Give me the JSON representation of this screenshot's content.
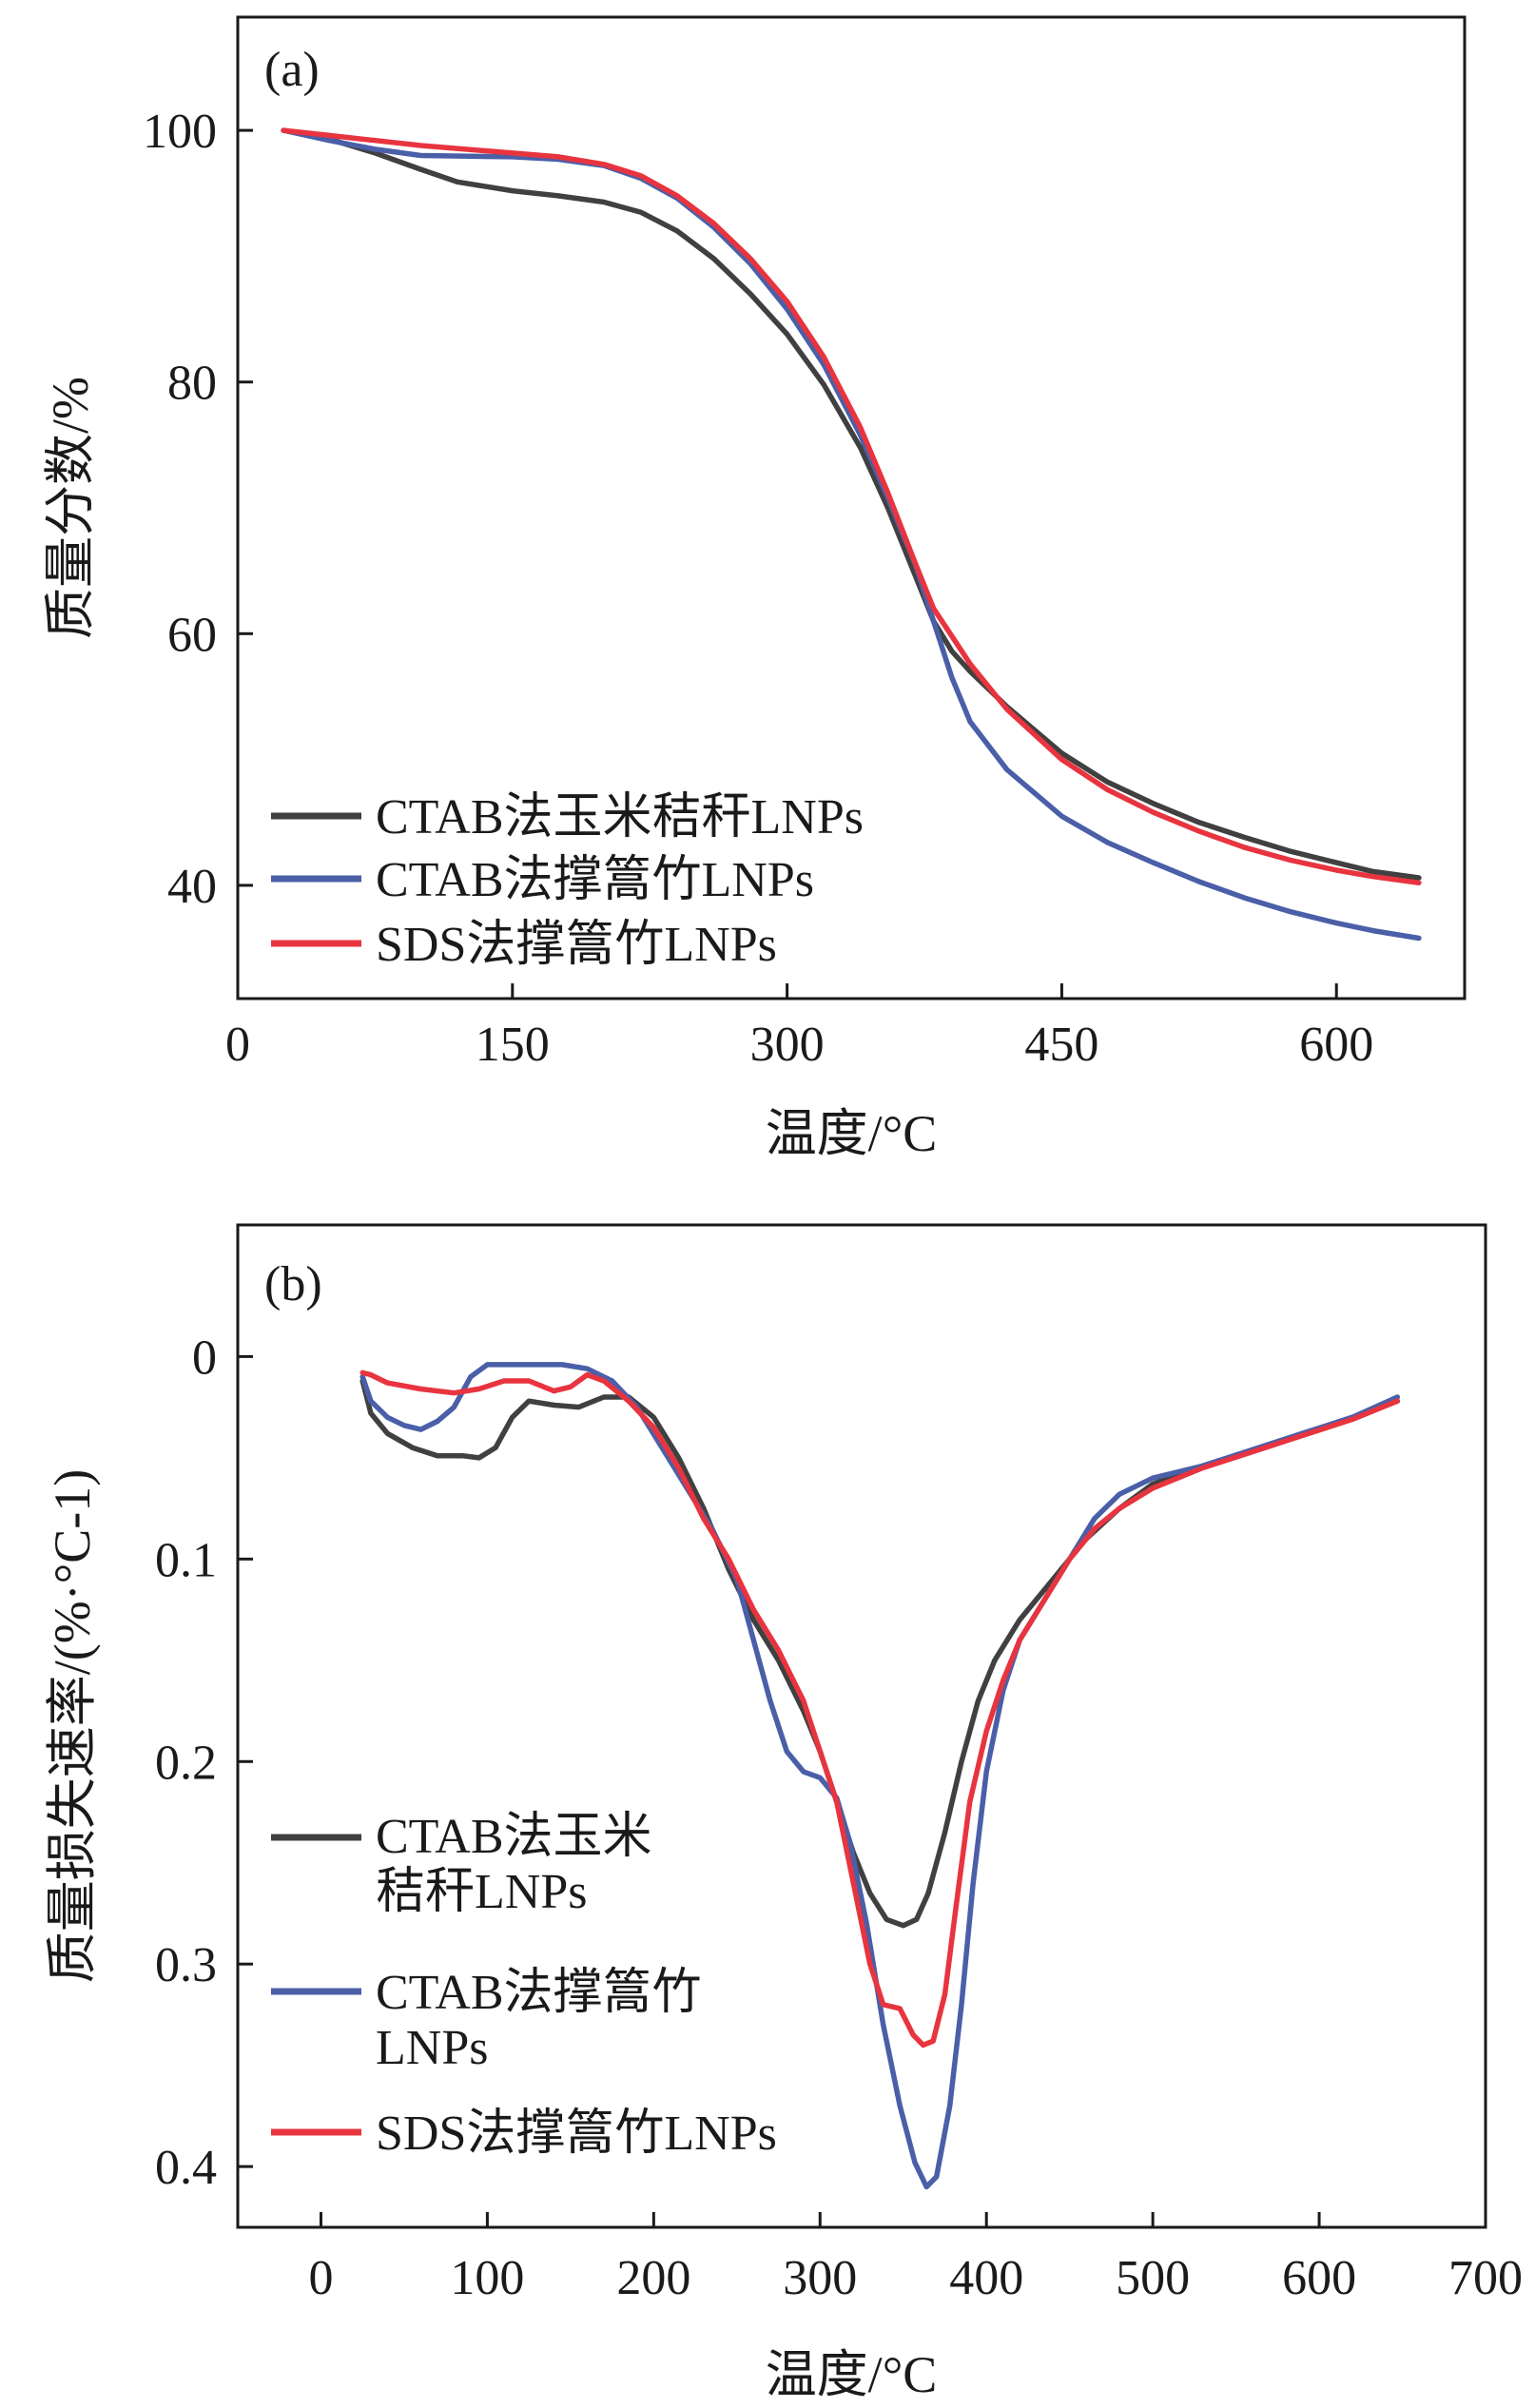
{
  "colors": {
    "black": "#404040",
    "blue": "#4a5fa8",
    "red": "#e8343f"
  },
  "chart_data": [
    {
      "panel_label": "(a)",
      "type": "line",
      "xlabel": "温度/°C",
      "ylabel": "质量分数/%",
      "xlim": [
        0,
        670
      ],
      "ylim": [
        31,
        109
      ],
      "xticks": [
        0,
        150,
        300,
        450,
        600
      ],
      "yticks": [
        40,
        60,
        80,
        100
      ],
      "legend_position": "bottom-left",
      "series": [
        {
          "name": "CTAB法玉米秸秆LNPs",
          "color": "#404040",
          "points": [
            [
              25,
              100
            ],
            [
              50,
              99.3
            ],
            [
              75,
              98.2
            ],
            [
              100,
              96.9
            ],
            [
              120,
              95.9
            ],
            [
              150,
              95.2
            ],
            [
              175,
              94.8
            ],
            [
              200,
              94.3
            ],
            [
              220,
              93.5
            ],
            [
              240,
              92.0
            ],
            [
              260,
              89.8
            ],
            [
              280,
              87.0
            ],
            [
              300,
              83.8
            ],
            [
              320,
              79.8
            ],
            [
              340,
              74.8
            ],
            [
              355,
              70.0
            ],
            [
              370,
              64.6
            ],
            [
              380,
              61.0
            ],
            [
              390,
              58.6
            ],
            [
              400,
              57.0
            ],
            [
              420,
              54.2
            ],
            [
              450,
              50.5
            ],
            [
              475,
              48.2
            ],
            [
              500,
              46.5
            ],
            [
              525,
              45.0
            ],
            [
              550,
              43.8
            ],
            [
              575,
              42.7
            ],
            [
              600,
              41.8
            ],
            [
              620,
              41.1
            ],
            [
              645,
              40.6
            ]
          ]
        },
        {
          "name": "CTAB法撑篙竹LNPs",
          "color": "#4a5fa8",
          "points": [
            [
              25,
              100
            ],
            [
              50,
              99.2
            ],
            [
              75,
              98.5
            ],
            [
              100,
              98.0
            ],
            [
              150,
              97.9
            ],
            [
              175,
              97.7
            ],
            [
              200,
              97.2
            ],
            [
              220,
              96.2
            ],
            [
              240,
              94.6
            ],
            [
              260,
              92.3
            ],
            [
              280,
              89.4
            ],
            [
              300,
              85.8
            ],
            [
              320,
              81.4
            ],
            [
              340,
              75.8
            ],
            [
              355,
              70.8
            ],
            [
              370,
              65.5
            ],
            [
              380,
              61.0
            ],
            [
              390,
              56.5
            ],
            [
              400,
              53.0
            ],
            [
              420,
              49.2
            ],
            [
              450,
              45.5
            ],
            [
              475,
              43.4
            ],
            [
              500,
              41.8
            ],
            [
              525,
              40.3
            ],
            [
              550,
              39.0
            ],
            [
              575,
              37.9
            ],
            [
              600,
              37.0
            ],
            [
              620,
              36.4
            ],
            [
              645,
              35.8
            ]
          ]
        },
        {
          "name": "SDS法撑篙竹LNPs",
          "color": "#e8343f",
          "points": [
            [
              25,
              100
            ],
            [
              50,
              99.6
            ],
            [
              75,
              99.2
            ],
            [
              100,
              98.8
            ],
            [
              150,
              98.2
            ],
            [
              175,
              97.9
            ],
            [
              200,
              97.3
            ],
            [
              220,
              96.4
            ],
            [
              240,
              94.8
            ],
            [
              260,
              92.6
            ],
            [
              280,
              89.8
            ],
            [
              300,
              86.4
            ],
            [
              320,
              82.0
            ],
            [
              340,
              76.4
            ],
            [
              355,
              71.2
            ],
            [
              370,
              65.6
            ],
            [
              380,
              62.0
            ],
            [
              390,
              59.8
            ],
            [
              400,
              57.6
            ],
            [
              420,
              54.0
            ],
            [
              450,
              50.0
            ],
            [
              475,
              47.6
            ],
            [
              500,
              45.8
            ],
            [
              525,
              44.3
            ],
            [
              550,
              43.0
            ],
            [
              575,
              42.0
            ],
            [
              600,
              41.2
            ],
            [
              620,
              40.7
            ],
            [
              645,
              40.2
            ]
          ]
        }
      ]
    },
    {
      "panel_label": "(b)",
      "type": "line",
      "xlabel": "温度/°C",
      "ylabel": "质量损失速率/(%·°C-1)",
      "xlim": [
        -50,
        700
      ],
      "ylim": [
        -0.065,
        0.43
      ],
      "y_inverted": true,
      "xticks": [
        0,
        100,
        200,
        300,
        400,
        500,
        600,
        700
      ],
      "ytick_values": [
        0,
        0.1,
        0.2,
        0.3,
        0.4
      ],
      "ytick_labels": [
        "0",
        "0.1",
        "0.2",
        "0.3",
        "0.4"
      ],
      "legend_position": "bottom-left",
      "legend_entries": [
        {
          "lines": [
            "CTAB法玉米",
            "秸秆LNPs"
          ],
          "color": "#404040"
        },
        {
          "lines": [
            "CTAB法撑篙竹",
            "LNPs"
          ],
          "color": "#4a5fa8"
        },
        {
          "lines": [
            "SDS法撑篙竹LNPs"
          ],
          "color": "#e8343f"
        }
      ],
      "series": [
        {
          "name": "CTAB法玉米秸秆LNPs",
          "color": "#404040",
          "points": [
            [
              25,
              0.012
            ],
            [
              30,
              0.028
            ],
            [
              40,
              0.038
            ],
            [
              55,
              0.045
            ],
            [
              70,
              0.049
            ],
            [
              85,
              0.049
            ],
            [
              95,
              0.05
            ],
            [
              105,
              0.045
            ],
            [
              115,
              0.03
            ],
            [
              125,
              0.022
            ],
            [
              140,
              0.024
            ],
            [
              155,
              0.025
            ],
            [
              170,
              0.02
            ],
            [
              185,
              0.02
            ],
            [
              200,
              0.03
            ],
            [
              215,
              0.05
            ],
            [
              230,
              0.075
            ],
            [
              245,
              0.105
            ],
            [
              260,
              0.13
            ],
            [
              275,
              0.15
            ],
            [
              290,
              0.175
            ],
            [
              300,
              0.195
            ],
            [
              310,
              0.22
            ],
            [
              320,
              0.245
            ],
            [
              330,
              0.265
            ],
            [
              340,
              0.278
            ],
            [
              350,
              0.281
            ],
            [
              358,
              0.278
            ],
            [
              365,
              0.265
            ],
            [
              375,
              0.235
            ],
            [
              385,
              0.2
            ],
            [
              395,
              0.17
            ],
            [
              405,
              0.15
            ],
            [
              420,
              0.13
            ],
            [
              440,
              0.11
            ],
            [
              460,
              0.09
            ],
            [
              480,
              0.075
            ],
            [
              500,
              0.063
            ],
            [
              530,
              0.054
            ],
            [
              560,
              0.046
            ],
            [
              590,
              0.038
            ],
            [
              620,
              0.03
            ],
            [
              647,
              0.022
            ]
          ]
        },
        {
          "name": "CTAB法撑篙竹LNPs",
          "color": "#4a5fa8",
          "points": [
            [
              25,
              0.01
            ],
            [
              30,
              0.022
            ],
            [
              40,
              0.03
            ],
            [
              50,
              0.034
            ],
            [
              60,
              0.036
            ],
            [
              70,
              0.032
            ],
            [
              80,
              0.025
            ],
            [
              90,
              0.01
            ],
            [
              100,
              0.004
            ],
            [
              115,
              0.004
            ],
            [
              130,
              0.004
            ],
            [
              145,
              0.004
            ],
            [
              160,
              0.006
            ],
            [
              175,
              0.012
            ],
            [
              190,
              0.025
            ],
            [
              205,
              0.045
            ],
            [
              220,
              0.065
            ],
            [
              235,
              0.085
            ],
            [
              250,
              0.11
            ],
            [
              260,
              0.14
            ],
            [
              270,
              0.17
            ],
            [
              280,
              0.195
            ],
            [
              290,
              0.205
            ],
            [
              300,
              0.208
            ],
            [
              310,
              0.218
            ],
            [
              318,
              0.24
            ],
            [
              328,
              0.28
            ],
            [
              338,
              0.33
            ],
            [
              348,
              0.37
            ],
            [
              357,
              0.398
            ],
            [
              364,
              0.41
            ],
            [
              370,
              0.405
            ],
            [
              378,
              0.37
            ],
            [
              385,
              0.32
            ],
            [
              392,
              0.26
            ],
            [
              400,
              0.205
            ],
            [
              410,
              0.165
            ],
            [
              420,
              0.14
            ],
            [
              435,
              0.12
            ],
            [
              450,
              0.1
            ],
            [
              465,
              0.08
            ],
            [
              480,
              0.068
            ],
            [
              500,
              0.06
            ],
            [
              530,
              0.054
            ],
            [
              560,
              0.046
            ],
            [
              590,
              0.038
            ],
            [
              620,
              0.03
            ],
            [
              647,
              0.02
            ]
          ]
        },
        {
          "name": "SDS法撑篙竹LNPs",
          "color": "#e8343f",
          "points": [
            [
              25,
              0.008
            ],
            [
              30,
              0.009
            ],
            [
              40,
              0.013
            ],
            [
              60,
              0.016
            ],
            [
              80,
              0.018
            ],
            [
              95,
              0.016
            ],
            [
              110,
              0.012
            ],
            [
              125,
              0.012
            ],
            [
              140,
              0.017
            ],
            [
              150,
              0.015
            ],
            [
              160,
              0.009
            ],
            [
              170,
              0.012
            ],
            [
              185,
              0.022
            ],
            [
              200,
              0.035
            ],
            [
              215,
              0.055
            ],
            [
              230,
              0.08
            ],
            [
              245,
              0.1
            ],
            [
              260,
              0.125
            ],
            [
              275,
              0.145
            ],
            [
              290,
              0.17
            ],
            [
              300,
              0.195
            ],
            [
              310,
              0.22
            ],
            [
              320,
              0.26
            ],
            [
              330,
              0.3
            ],
            [
              338,
              0.32
            ],
            [
              348,
              0.322
            ],
            [
              356,
              0.335
            ],
            [
              362,
              0.34
            ],
            [
              368,
              0.338
            ],
            [
              375,
              0.315
            ],
            [
              382,
              0.27
            ],
            [
              390,
              0.22
            ],
            [
              400,
              0.185
            ],
            [
              410,
              0.16
            ],
            [
              420,
              0.14
            ],
            [
              435,
              0.12
            ],
            [
              450,
              0.1
            ],
            [
              465,
              0.085
            ],
            [
              480,
              0.075
            ],
            [
              500,
              0.065
            ],
            [
              530,
              0.055
            ],
            [
              560,
              0.047
            ],
            [
              590,
              0.039
            ],
            [
              620,
              0.031
            ],
            [
              647,
              0.022
            ]
          ]
        }
      ]
    }
  ]
}
